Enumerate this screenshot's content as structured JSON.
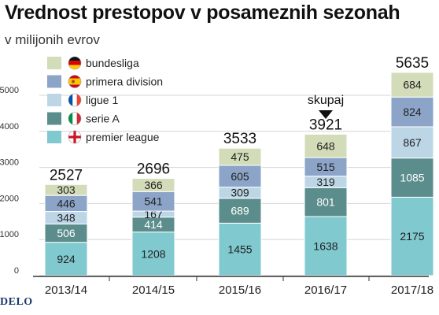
{
  "header": {
    "title": "Vrednost prestopov v posameznih sezonah",
    "subtitle": "v milijonih evrov"
  },
  "brand": "DELO",
  "annotation": "skupaj",
  "colors": {
    "premier league": "#7fc9cf",
    "serie A": "#5c8d8d",
    "ligue 1": "#bcd6e6",
    "primera division": "#8ca4c8",
    "bundesliga": "#d3dcb8"
  },
  "legend_icons": [
    "flag-germany-icon",
    "flag-spain-icon",
    "flag-france-icon",
    "flag-italy-icon",
    "flag-england-icon"
  ],
  "chart_data": {
    "type": "bar",
    "stacked": true,
    "categories": [
      "2013/14",
      "2014/15",
      "2015/16",
      "2016/17",
      "2017/18"
    ],
    "series": [
      {
        "name": "premier league",
        "values": [
          924,
          1208,
          1455,
          1638,
          2175
        ]
      },
      {
        "name": "serie A",
        "values": [
          506,
          414,
          689,
          801,
          1085
        ]
      },
      {
        "name": "ligue 1",
        "values": [
          348,
          167,
          309,
          319,
          867
        ]
      },
      {
        "name": "primera division",
        "values": [
          446,
          541,
          605,
          515,
          824
        ]
      },
      {
        "name": "bundesliga",
        "values": [
          303,
          366,
          475,
          648,
          684
        ]
      }
    ],
    "totals": [
      2527,
      2696,
      3533,
      3921,
      5635
    ],
    "y_ticks": [
      0,
      1000,
      2000,
      3000,
      4000,
      5000
    ],
    "ylim": [
      0,
      5800
    ],
    "grid": true,
    "legend_position": "top-left"
  }
}
